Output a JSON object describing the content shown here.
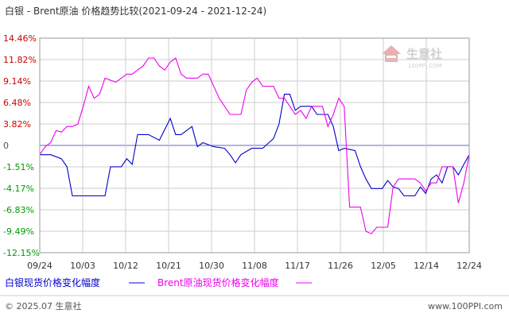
{
  "title": "白银 - Brent原油 价格趋势比较(2021-09-24 - 2021-12-24)",
  "footer": {
    "copyright": "© 2025.07 生意社",
    "url": "www.100PPI.com"
  },
  "watermark": {
    "name": "生意社",
    "url": "100PPI.COM"
  },
  "colors": {
    "silver": "#0000cc",
    "brent": "#ee00ee",
    "positive_tick": "#cc0000",
    "negative_tick": "#009900",
    "grid": "#cccccc",
    "frame": "#999999"
  },
  "chart_data": {
    "type": "line",
    "title": "白银 - Brent原油 价格趋势比较(2021-09-24 - 2021-12-24)",
    "ylim": [
      -12.15,
      14.46
    ],
    "yticks": [
      "14.46%",
      "11.82%",
      "9.14%",
      "6.48%",
      "3.82%",
      "0",
      "-1.51%",
      "-4.17%",
      "-6.83%",
      "-9.49%",
      "-12.15%"
    ],
    "xticks": [
      "09/24",
      "10/03",
      "10/12",
      "10/21",
      "10/30",
      "11/08",
      "11/17",
      "11/26",
      "12/05",
      "12/14",
      "12/24"
    ],
    "grid": true,
    "legend": "bottom",
    "series": [
      {
        "name": "白银现货价格变化幅度",
        "color": "#0000cc",
        "points": [
          [
            0,
            0
          ],
          [
            2,
            0
          ],
          [
            4,
            -0.5
          ],
          [
            5,
            -1.5
          ],
          [
            6,
            -5.1
          ],
          [
            12,
            -5.1
          ],
          [
            13,
            -1.5
          ],
          [
            15,
            -1.5
          ],
          [
            16,
            -0.5
          ],
          [
            17,
            -1.2
          ],
          [
            18,
            2.5
          ],
          [
            20,
            2.5
          ],
          [
            22,
            1.8
          ],
          [
            24,
            4.5
          ],
          [
            25,
            2.5
          ],
          [
            26,
            2.5
          ],
          [
            28,
            3.5
          ],
          [
            29,
            1
          ],
          [
            30,
            1.5
          ],
          [
            32,
            1
          ],
          [
            34,
            0.8
          ],
          [
            35,
            0
          ],
          [
            36,
            -1
          ],
          [
            37,
            0
          ],
          [
            39,
            0.8
          ],
          [
            41,
            0.8
          ],
          [
            43,
            2
          ],
          [
            44,
            3.8
          ],
          [
            45,
            7.5
          ],
          [
            46,
            7.5
          ],
          [
            47,
            5.5
          ],
          [
            48,
            6
          ],
          [
            50,
            6
          ],
          [
            51,
            5
          ],
          [
            53,
            5
          ],
          [
            54,
            3.5
          ],
          [
            55,
            0.5
          ],
          [
            56,
            0.8
          ],
          [
            58,
            0.5
          ],
          [
            59,
            -1.5
          ],
          [
            60,
            -3
          ],
          [
            61,
            -4.2
          ],
          [
            63,
            -4.2
          ],
          [
            64,
            -3.2
          ],
          [
            65,
            -4
          ],
          [
            66,
            -4.2
          ],
          [
            67,
            -5.1
          ],
          [
            69,
            -5.1
          ],
          [
            70,
            -4
          ],
          [
            71,
            -4.8
          ],
          [
            72,
            -3
          ],
          [
            73,
            -2.5
          ],
          [
            74,
            -3.5
          ],
          [
            75,
            -1.5
          ],
          [
            76,
            -1.5
          ],
          [
            77,
            -2.5
          ],
          [
            78,
            -1.2
          ],
          [
            79,
            0
          ]
        ]
      },
      {
        "name": "Brent原油现货价格变化幅度",
        "color": "#ee00ee",
        "points": [
          [
            0,
            0
          ],
          [
            1,
            1
          ],
          [
            2,
            1.5
          ],
          [
            3,
            3
          ],
          [
            4,
            2.8
          ],
          [
            5,
            3.5
          ],
          [
            6,
            3.5
          ],
          [
            7,
            3.8
          ],
          [
            8,
            6
          ],
          [
            9,
            8.5
          ],
          [
            10,
            7
          ],
          [
            11,
            7.5
          ],
          [
            12,
            9.5
          ],
          [
            14,
            9
          ],
          [
            16,
            10
          ],
          [
            17,
            10
          ],
          [
            18,
            10.5
          ],
          [
            19,
            11
          ],
          [
            20,
            12
          ],
          [
            21,
            12
          ],
          [
            22,
            11
          ],
          [
            23,
            10.5
          ],
          [
            24,
            11.5
          ],
          [
            25,
            12
          ],
          [
            26,
            10
          ],
          [
            27,
            9.5
          ],
          [
            28,
            9.5
          ],
          [
            29,
            9.5
          ],
          [
            30,
            10
          ],
          [
            31,
            10
          ],
          [
            33,
            7
          ],
          [
            35,
            5
          ],
          [
            37,
            5
          ],
          [
            38,
            8
          ],
          [
            39,
            9
          ],
          [
            40,
            9.5
          ],
          [
            41,
            8.5
          ],
          [
            43,
            8.5
          ],
          [
            44,
            7
          ],
          [
            45,
            7
          ],
          [
            46,
            6
          ],
          [
            47,
            5
          ],
          [
            48,
            5.5
          ],
          [
            49,
            4.5
          ],
          [
            50,
            6
          ],
          [
            52,
            6
          ],
          [
            53,
            3.5
          ],
          [
            54,
            5
          ],
          [
            55,
            7
          ],
          [
            56,
            6
          ],
          [
            57,
            -6.5
          ],
          [
            59,
            -6.5
          ],
          [
            60,
            -9.5
          ],
          [
            61,
            -9.8
          ],
          [
            62,
            -9
          ],
          [
            64,
            -9
          ],
          [
            65,
            -4
          ],
          [
            66,
            -3
          ],
          [
            67,
            -3
          ],
          [
            69,
            -3
          ],
          [
            70,
            -3.5
          ],
          [
            71,
            -4.5
          ],
          [
            72,
            -3.5
          ],
          [
            73,
            -3.5
          ],
          [
            74,
            -1.5
          ],
          [
            76,
            -1.5
          ],
          [
            77,
            -6
          ],
          [
            78,
            -3.5
          ],
          [
            79,
            0
          ]
        ]
      }
    ]
  }
}
